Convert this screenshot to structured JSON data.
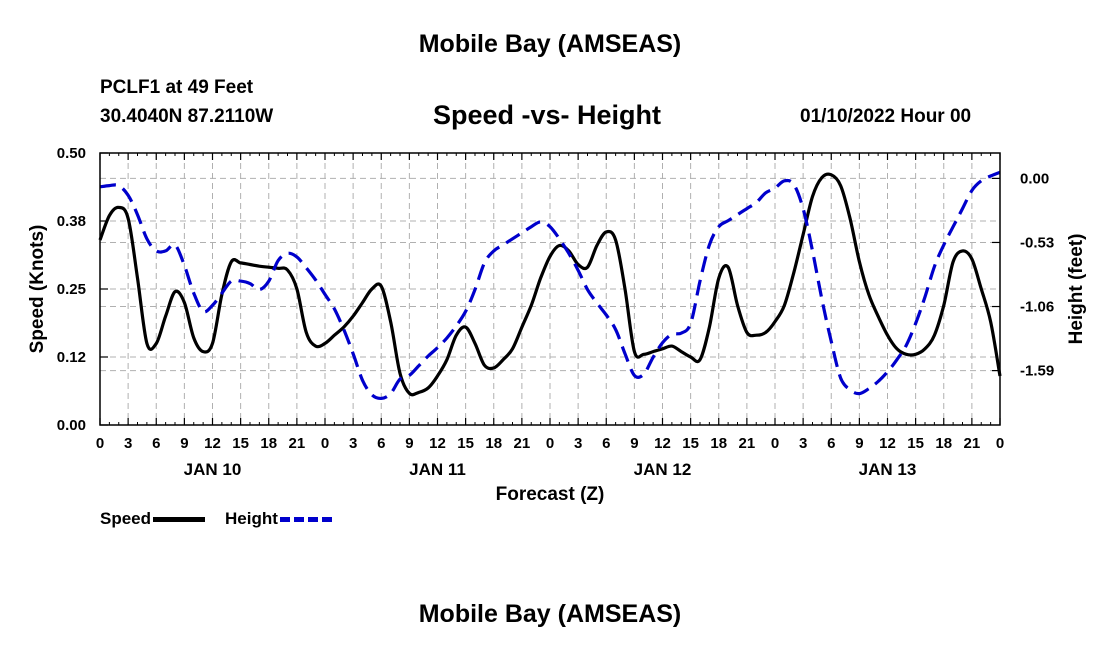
{
  "header": {
    "title": "Mobile Bay (AMSEAS)",
    "station": "PCLF1 at 49 Feet",
    "coordinates": "30.4040N  87.2110W",
    "subtitle": "Speed -vs- Height",
    "datetime": "01/10/2022 Hour 00"
  },
  "footer": {
    "title": "Mobile Bay (AMSEAS)"
  },
  "legend": {
    "speed_label": "Speed",
    "height_label": "Height"
  },
  "colors": {
    "speed": "#000000",
    "height": "#0000cc",
    "grid": "#b0b0b0"
  },
  "chart_data": {
    "type": "line",
    "title": "Speed -vs- Height",
    "xlabel": "Forecast (Z)",
    "ylabel": "Speed (Knots)",
    "y2label": "Height (feet)",
    "x_range_hours": [
      0,
      96
    ],
    "x_ticks": [
      {
        "hour": 0,
        "label": "0"
      },
      {
        "hour": 3,
        "label": "3"
      },
      {
        "hour": 6,
        "label": "6"
      },
      {
        "hour": 9,
        "label": "9"
      },
      {
        "hour": 12,
        "label": "12"
      },
      {
        "hour": 15,
        "label": "15"
      },
      {
        "hour": 18,
        "label": "18"
      },
      {
        "hour": 21,
        "label": "21"
      },
      {
        "hour": 24,
        "label": "0"
      },
      {
        "hour": 27,
        "label": "3"
      },
      {
        "hour": 30,
        "label": "6"
      },
      {
        "hour": 33,
        "label": "9"
      },
      {
        "hour": 36,
        "label": "12"
      },
      {
        "hour": 39,
        "label": "15"
      },
      {
        "hour": 42,
        "label": "18"
      },
      {
        "hour": 45,
        "label": "21"
      },
      {
        "hour": 48,
        "label": "0"
      },
      {
        "hour": 51,
        "label": "3"
      },
      {
        "hour": 54,
        "label": "6"
      },
      {
        "hour": 57,
        "label": "9"
      },
      {
        "hour": 60,
        "label": "12"
      },
      {
        "hour": 63,
        "label": "15"
      },
      {
        "hour": 66,
        "label": "18"
      },
      {
        "hour": 69,
        "label": "21"
      },
      {
        "hour": 72,
        "label": "0"
      },
      {
        "hour": 75,
        "label": "3"
      },
      {
        "hour": 78,
        "label": "6"
      },
      {
        "hour": 81,
        "label": "9"
      },
      {
        "hour": 84,
        "label": "12"
      },
      {
        "hour": 87,
        "label": "15"
      },
      {
        "hour": 90,
        "label": "18"
      },
      {
        "hour": 93,
        "label": "21"
      },
      {
        "hour": 96,
        "label": "0"
      }
    ],
    "day_labels": [
      {
        "hour": 12,
        "label": "JAN 10"
      },
      {
        "hour": 36,
        "label": "JAN 11"
      },
      {
        "hour": 60,
        "label": "JAN 12"
      },
      {
        "hour": 84,
        "label": "JAN 13"
      }
    ],
    "y_left": {
      "min": 0,
      "max": 0.5,
      "ticks": [
        {
          "value": 0.0,
          "label": "0.00"
        },
        {
          "value": 0.125,
          "label": "0.12"
        },
        {
          "value": 0.25,
          "label": "0.25"
        },
        {
          "value": 0.375,
          "label": "0.38"
        },
        {
          "value": 0.5,
          "label": "0.50"
        }
      ]
    },
    "y_right": {
      "min": -2.04,
      "max": 0.21,
      "ticks": [
        {
          "value": 0.0,
          "label": "0.00"
        },
        {
          "value": -0.53,
          "label": "-0.53"
        },
        {
          "value": -1.06,
          "label": "-1.06"
        },
        {
          "value": -1.59,
          "label": "-1.59"
        }
      ]
    },
    "series": [
      {
        "name": "Speed",
        "axis": "left",
        "style": "solid",
        "x": [
          0,
          1,
          2,
          3,
          4,
          5,
          6,
          7,
          8,
          9,
          10,
          11,
          12,
          13,
          14,
          15,
          16,
          17,
          18,
          19,
          20,
          21,
          22,
          23,
          24,
          25,
          26,
          27,
          28,
          29,
          30,
          31,
          32,
          33,
          34,
          35,
          36,
          37,
          38,
          39,
          40,
          41,
          42,
          43,
          44,
          45,
          46,
          47,
          48,
          49,
          50,
          51,
          52,
          53,
          54,
          55,
          56,
          57,
          58,
          59,
          60,
          61,
          62,
          63,
          64,
          65,
          66,
          67,
          68,
          69,
          70,
          71,
          72,
          73,
          74,
          75,
          76,
          77,
          78,
          79,
          80,
          81,
          82,
          83,
          84,
          85,
          86,
          87,
          88,
          89,
          90,
          91,
          92,
          93,
          94,
          95,
          96
        ],
        "values": [
          0.34,
          0.385,
          0.4,
          0.38,
          0.27,
          0.15,
          0.15,
          0.2,
          0.245,
          0.225,
          0.16,
          0.135,
          0.15,
          0.24,
          0.3,
          0.298,
          0.295,
          0.292,
          0.29,
          0.288,
          0.285,
          0.25,
          0.17,
          0.145,
          0.15,
          0.165,
          0.18,
          0.2,
          0.225,
          0.25,
          0.255,
          0.19,
          0.095,
          0.058,
          0.06,
          0.068,
          0.09,
          0.12,
          0.165,
          0.18,
          0.15,
          0.11,
          0.105,
          0.12,
          0.14,
          0.18,
          0.22,
          0.27,
          0.31,
          0.33,
          0.32,
          0.295,
          0.29,
          0.33,
          0.355,
          0.34,
          0.25,
          0.135,
          0.13,
          0.135,
          0.14,
          0.145,
          0.135,
          0.125,
          0.12,
          0.18,
          0.27,
          0.29,
          0.22,
          0.17,
          0.165,
          0.17,
          0.19,
          0.22,
          0.28,
          0.35,
          0.42,
          0.455,
          0.46,
          0.44,
          0.38,
          0.3,
          0.24,
          0.2,
          0.165,
          0.14,
          0.13,
          0.13,
          0.14,
          0.165,
          0.22,
          0.3,
          0.32,
          0.305,
          0.25,
          0.19,
          0.09
        ]
      },
      {
        "name": "Height",
        "axis": "right",
        "style": "dashed",
        "x": [
          0,
          1,
          2,
          3,
          4,
          5,
          6,
          7,
          8,
          9,
          10,
          11,
          12,
          13,
          14,
          15,
          16,
          17,
          18,
          19,
          20,
          21,
          22,
          23,
          24,
          25,
          26,
          27,
          28,
          29,
          30,
          31,
          32,
          33,
          34,
          35,
          36,
          37,
          38,
          39,
          40,
          41,
          42,
          43,
          44,
          45,
          46,
          47,
          48,
          49,
          50,
          51,
          52,
          53,
          54,
          55,
          56,
          57,
          58,
          59,
          60,
          61,
          62,
          63,
          64,
          65,
          66,
          67,
          68,
          69,
          70,
          71,
          72,
          73,
          74,
          75,
          76,
          77,
          78,
          79,
          80,
          81,
          82,
          83,
          84,
          85,
          86,
          87,
          88,
          89,
          90,
          91,
          92,
          93,
          94,
          95,
          96
        ],
        "values": [
          -0.07,
          -0.06,
          -0.06,
          -0.14,
          -0.3,
          -0.5,
          -0.6,
          -0.6,
          -0.55,
          -0.72,
          -0.95,
          -1.1,
          -1.05,
          -0.95,
          -0.85,
          -0.85,
          -0.87,
          -0.92,
          -0.85,
          -0.68,
          -0.62,
          -0.65,
          -0.74,
          -0.84,
          -0.96,
          -1.08,
          -1.25,
          -1.45,
          -1.67,
          -1.79,
          -1.82,
          -1.78,
          -1.66,
          -1.63,
          -1.55,
          -1.47,
          -1.4,
          -1.32,
          -1.22,
          -1.1,
          -0.92,
          -0.7,
          -0.6,
          -0.55,
          -0.5,
          -0.45,
          -0.4,
          -0.36,
          -0.4,
          -0.5,
          -0.62,
          -0.76,
          -0.92,
          -1.03,
          -1.13,
          -1.25,
          -1.45,
          -1.63,
          -1.62,
          -1.48,
          -1.36,
          -1.29,
          -1.28,
          -1.2,
          -0.85,
          -0.55,
          -0.4,
          -0.35,
          -0.3,
          -0.25,
          -0.2,
          -0.12,
          -0.08,
          -0.02,
          -0.05,
          -0.25,
          -0.6,
          -1.0,
          -1.35,
          -1.65,
          -1.75,
          -1.78,
          -1.74,
          -1.68,
          -1.6,
          -1.5,
          -1.38,
          -1.2,
          -0.98,
          -0.73,
          -0.55,
          -0.4,
          -0.25,
          -0.1,
          -0.02,
          0.02,
          0.05
        ]
      }
    ]
  }
}
